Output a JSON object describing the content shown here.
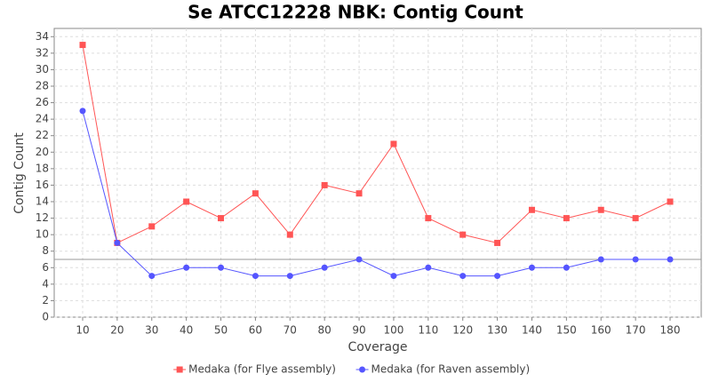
{
  "chart_data": {
    "type": "line",
    "title": "Se ATCC12228 NBK: Contig Count",
    "x_label": "Coverage",
    "y_label": "Contig Count",
    "categories": [
      "10",
      "20",
      "30",
      "40",
      "50",
      "60",
      "70",
      "80",
      "90",
      "100",
      "110",
      "120",
      "130",
      "140",
      "150",
      "160",
      "170",
      "180"
    ],
    "series": [
      {
        "name": "Medaka (for Flye assembly)",
        "color": "#ff5555",
        "marker": "square",
        "values": [
          33,
          9,
          11,
          14,
          12,
          15,
          10,
          16,
          15,
          21,
          12,
          10,
          9,
          13,
          12,
          13,
          12,
          14
        ]
      },
      {
        "name": "Medaka (for Raven assembly)",
        "color": "#5555ff",
        "marker": "circle",
        "values": [
          25,
          9,
          5,
          6,
          6,
          5,
          5,
          6,
          7,
          5,
          6,
          5,
          5,
          6,
          6,
          7,
          7,
          7
        ]
      }
    ],
    "ylim": [
      0,
      35
    ],
    "yticks": [
      0,
      2,
      4,
      6,
      8,
      10,
      12,
      14,
      16,
      18,
      20,
      22,
      24,
      26,
      28,
      30,
      32,
      34
    ],
    "hline": 7,
    "grid": true,
    "legend": "bottom"
  }
}
